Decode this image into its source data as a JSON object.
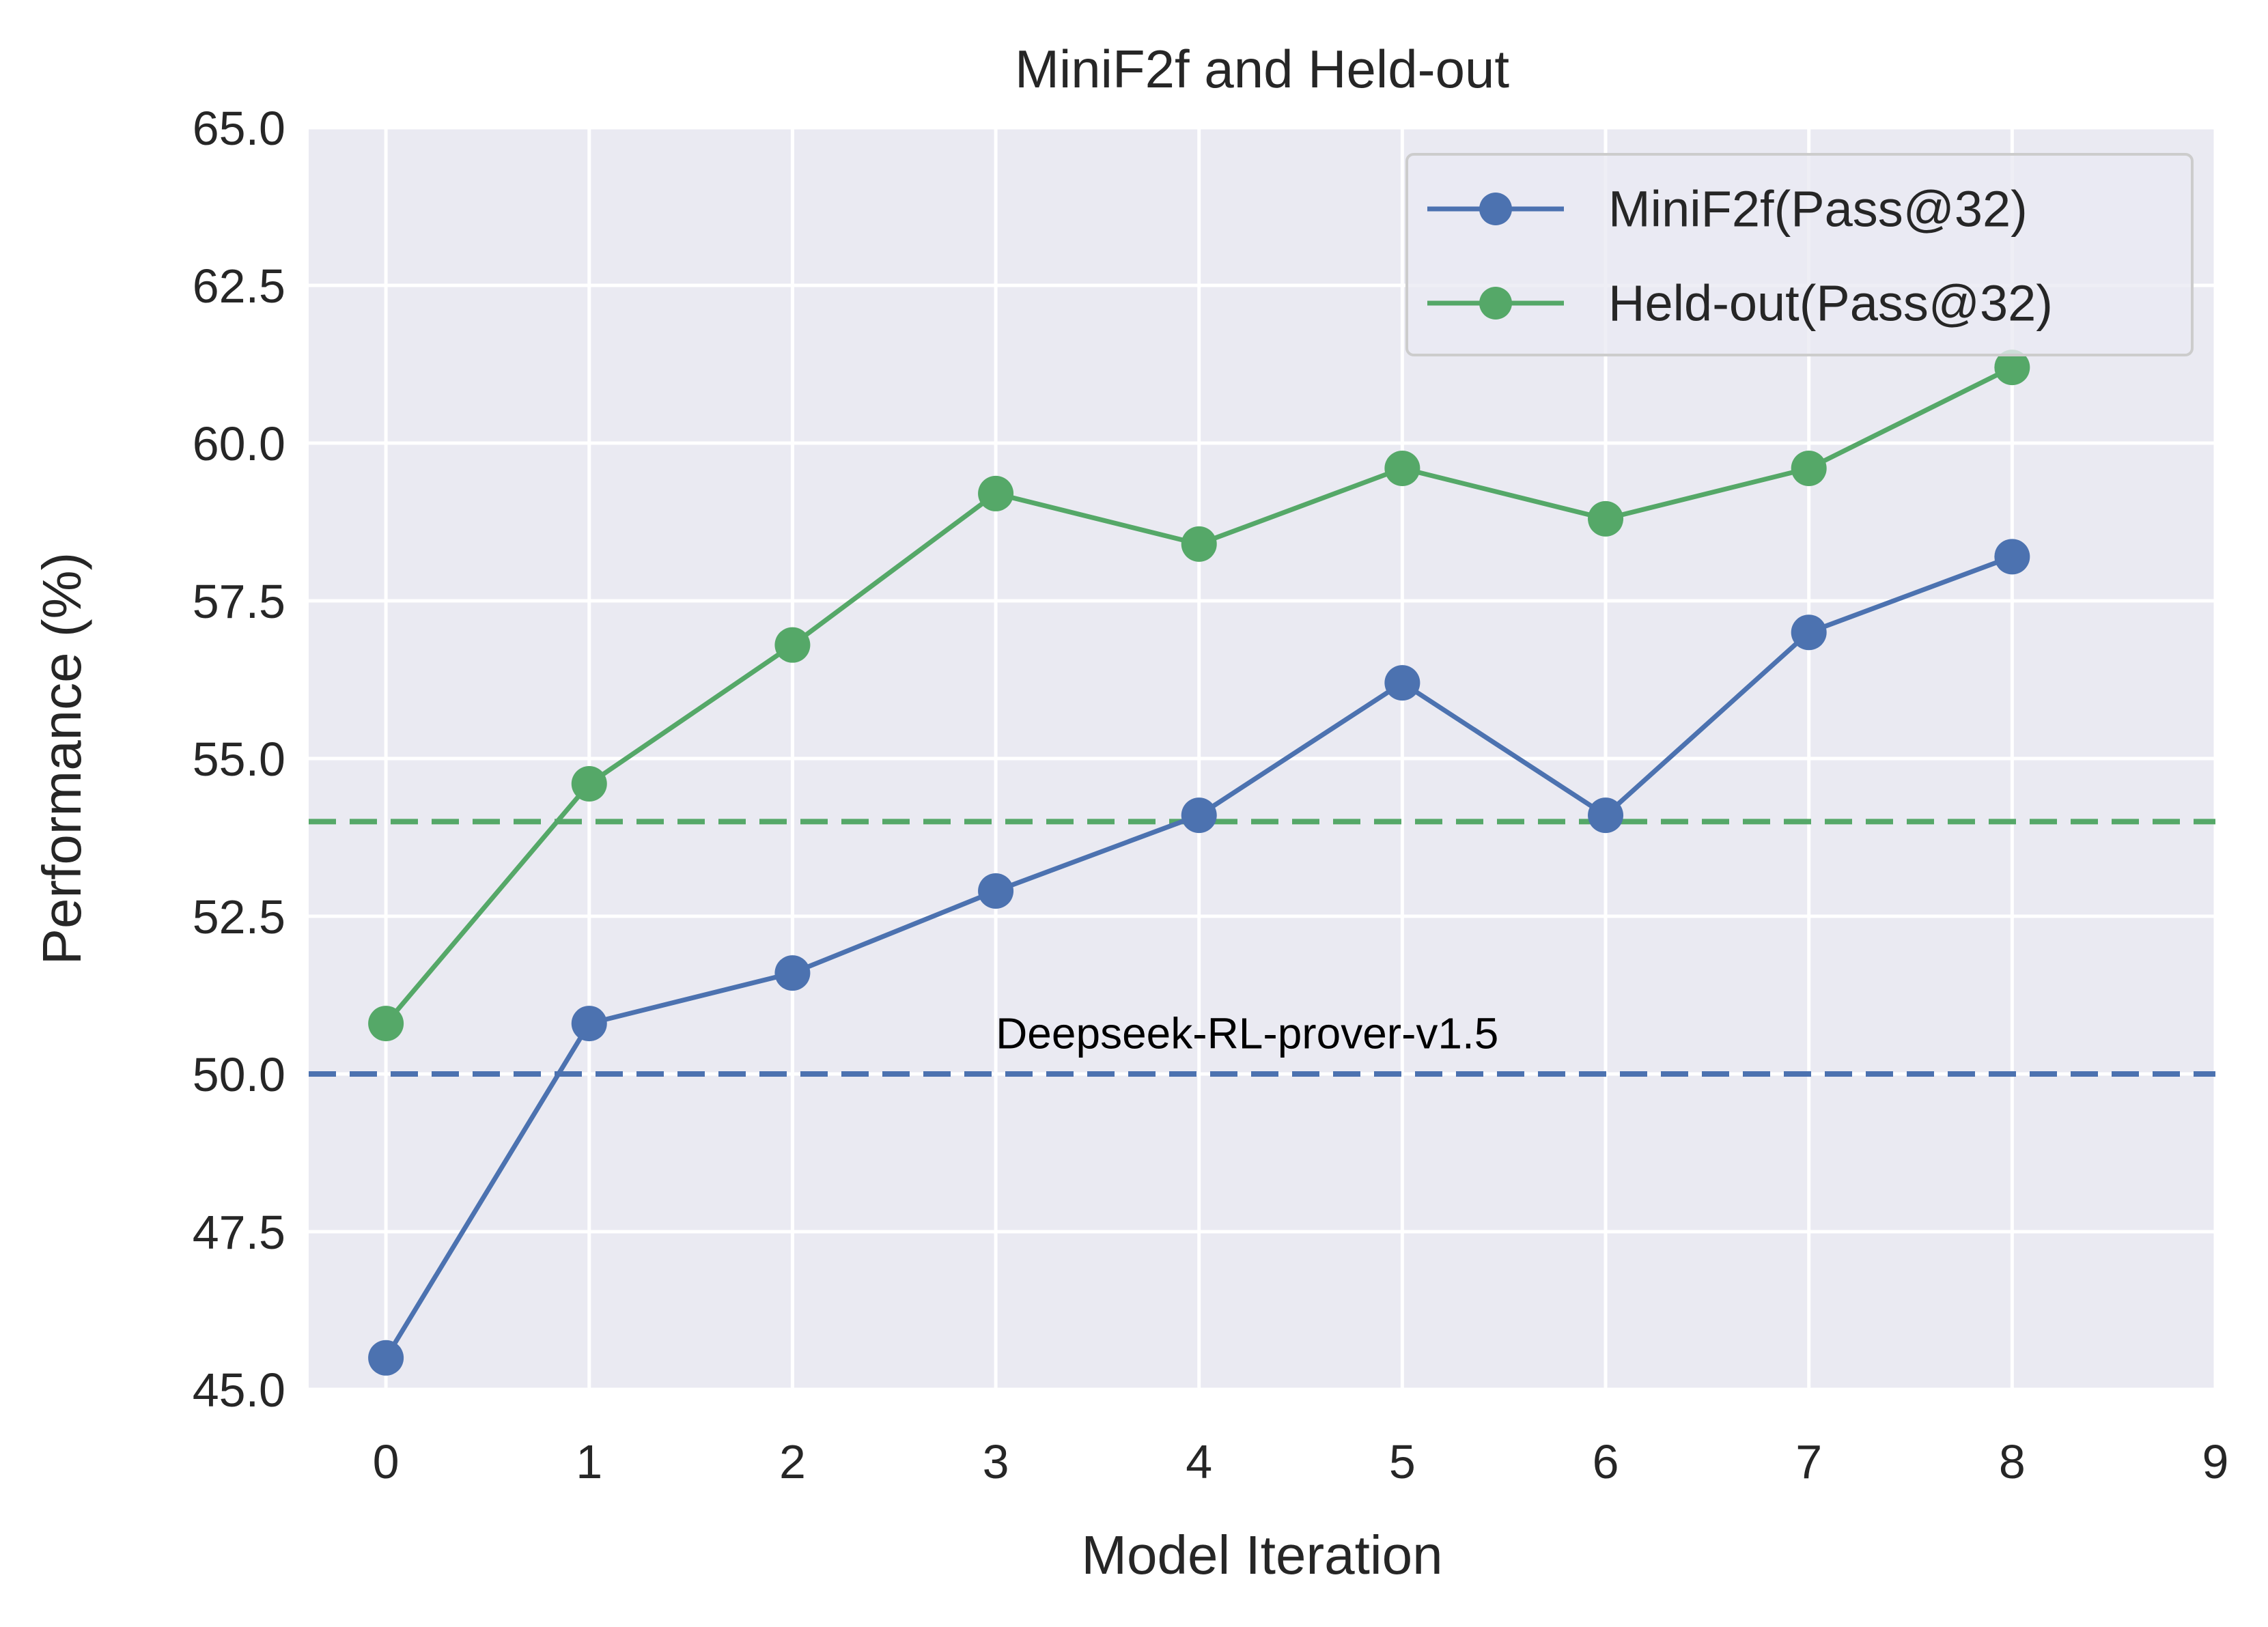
{
  "chart_data": {
    "type": "line",
    "title": "MiniF2f and Held-out",
    "xlabel": "Model Iteration",
    "ylabel": "Performance (%)",
    "xlim": [
      -0.38,
      9
    ],
    "ylim": [
      45.0,
      65.0
    ],
    "xticks": [
      "0",
      "1",
      "2",
      "3",
      "4",
      "5",
      "6",
      "7",
      "8",
      "9"
    ],
    "yticks": [
      "45.0",
      "47.5",
      "50.0",
      "52.5",
      "55.0",
      "57.5",
      "60.0",
      "62.5",
      "65.0"
    ],
    "grid": true,
    "legend_position": "top-right",
    "series": [
      {
        "name": "MiniF2f(Pass@32)",
        "color": "#4c72b0",
        "x": [
          0,
          1,
          2,
          3,
          4,
          5,
          6,
          7,
          8
        ],
        "values": [
          45.5,
          50.8,
          51.6,
          52.9,
          54.1,
          56.2,
          54.1,
          57.0,
          58.2
        ]
      },
      {
        "name": "Held-out(Pass@32)",
        "color": "#55a868",
        "x": [
          0,
          1,
          2,
          3,
          4,
          5,
          6,
          7,
          8
        ],
        "values": [
          50.8,
          54.6,
          56.8,
          59.2,
          58.4,
          59.6,
          58.8,
          59.6,
          61.2
        ]
      }
    ],
    "reference_lines": [
      {
        "y": 50.0,
        "color": "#4c72b0",
        "style": "dashed"
      },
      {
        "y": 54.0,
        "color": "#55a868",
        "style": "dashed"
      }
    ],
    "annotations": [
      {
        "text": "Deepseek-RL-prover-v1.5",
        "x": 3,
        "y": 50.3
      }
    ]
  }
}
